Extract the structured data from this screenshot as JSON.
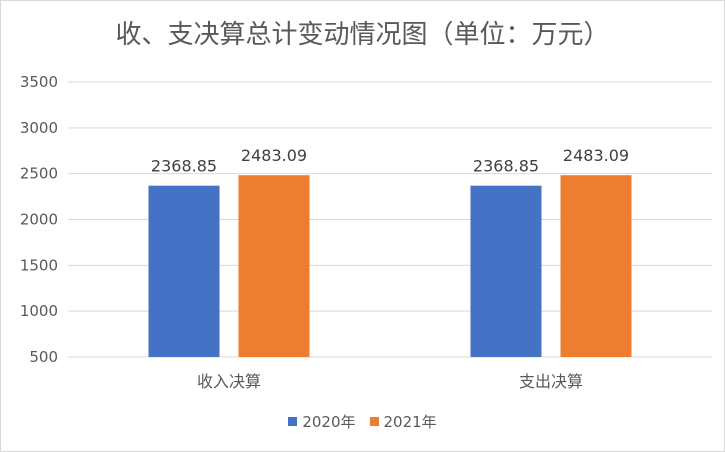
{
  "chart_data": {
    "type": "bar",
    "title": "收、支决算总计变动情况图（单位：万元）",
    "categories": [
      "收入决算",
      "支出决算"
    ],
    "series": [
      {
        "name": "2020年",
        "color": "#4472c4",
        "values": [
          2368.85,
          2368.85
        ],
        "labels": [
          "2368.85",
          "2368.85"
        ]
      },
      {
        "name": "2021年",
        "color": "#ed7d31",
        "values": [
          2483.09,
          2483.09
        ],
        "labels": [
          "2483.09",
          "2483.09"
        ]
      }
    ],
    "y_ticks": [
      "500",
      "1000",
      "1500",
      "2000",
      "2500",
      "3000",
      "3500"
    ],
    "ylim": [
      500,
      3500
    ],
    "grid": true,
    "legend": "bottom"
  }
}
